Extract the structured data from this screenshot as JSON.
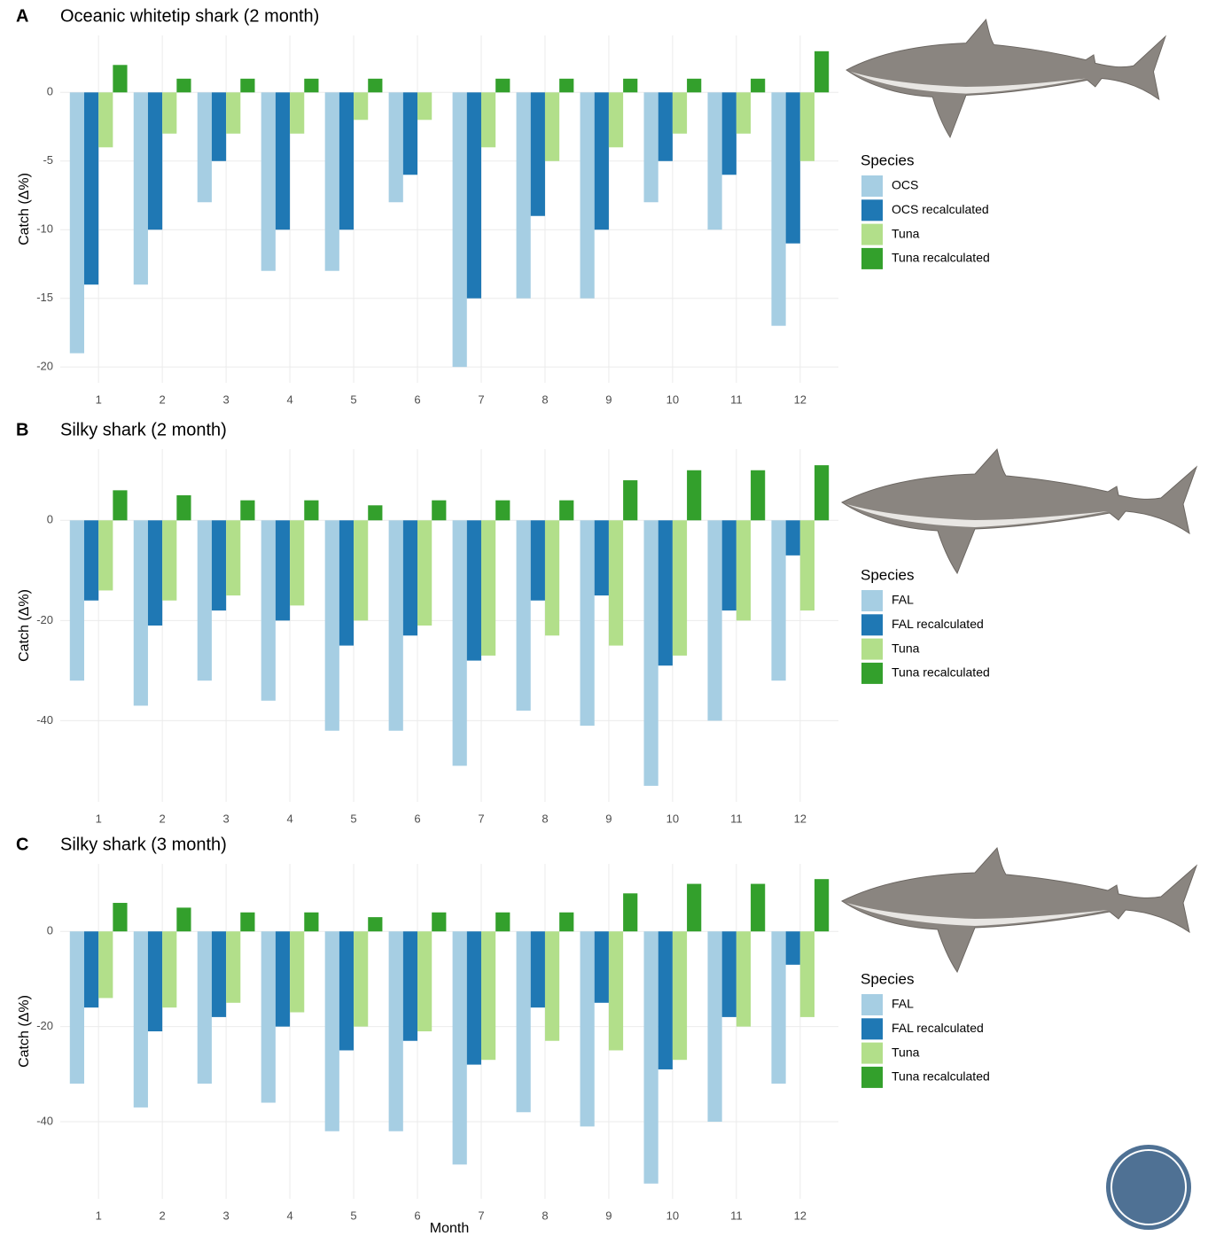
{
  "chart_data": [
    {
      "type": "bar",
      "panel": "A",
      "title": "Oceanic whitetip shark (2 month)",
      "y_label": "Catch (Δ%)",
      "legend_title": "Species",
      "legend": "right",
      "grid": true,
      "categories": [
        "1",
        "2",
        "3",
        "4",
        "5",
        "6",
        "7",
        "8",
        "9",
        "10",
        "11",
        "12"
      ],
      "series": [
        {
          "name": "OCS",
          "color": "#a6cee3",
          "values": [
            -19,
            -14,
            -8,
            -13,
            -13,
            -8,
            -20,
            -15,
            -15,
            -8,
            -10,
            -17
          ]
        },
        {
          "name": "OCS recalculated",
          "color": "#1f78b4",
          "values": [
            -14,
            -10,
            -5,
            -10,
            -10,
            -6,
            -15,
            -9,
            -10,
            -5,
            -6,
            -11
          ]
        },
        {
          "name": "Tuna",
          "color": "#b2df8a",
          "values": [
            -4,
            -3,
            -3,
            -3,
            -2,
            -2,
            -4,
            -5,
            -4,
            -3,
            -3,
            -5
          ]
        },
        {
          "name": "Tuna recalculated",
          "color": "#33a02c",
          "values": [
            2,
            1,
            1,
            1,
            1,
            0,
            1,
            1,
            1,
            1,
            1,
            3
          ]
        }
      ],
      "ylim": [
        -21.15,
        4.15
      ],
      "yticks": [
        -20,
        -15,
        -10,
        -5,
        0
      ]
    },
    {
      "type": "bar",
      "panel": "B",
      "title": "Silky shark (2 month)",
      "y_label": "Catch (Δ%)",
      "legend_title": "Species",
      "legend": "right",
      "grid": true,
      "categories": [
        "1",
        "2",
        "3",
        "4",
        "5",
        "6",
        "7",
        "8",
        "9",
        "10",
        "11",
        "12"
      ],
      "series": [
        {
          "name": "FAL",
          "color": "#a6cee3",
          "values": [
            -32,
            -37,
            -32,
            -36,
            -42,
            -42,
            -49,
            -38,
            -41,
            -53,
            -40,
            -32
          ]
        },
        {
          "name": "FAL recalculated",
          "color": "#1f78b4",
          "values": [
            -16,
            -21,
            -18,
            -20,
            -25,
            -23,
            -28,
            -16,
            -15,
            -29,
            -18,
            -7
          ]
        },
        {
          "name": "Tuna",
          "color": "#b2df8a",
          "values": [
            -14,
            -16,
            -15,
            -17,
            -20,
            -21,
            -27,
            -23,
            -25,
            -27,
            -20,
            -18
          ]
        },
        {
          "name": "Tuna recalculated",
          "color": "#33a02c",
          "values": [
            6,
            5,
            4,
            4,
            3,
            4,
            4,
            4,
            8,
            10,
            10,
            11
          ]
        }
      ],
      "ylim": [
        -56.2,
        14.2
      ],
      "yticks": [
        -40,
        -20,
        0
      ]
    },
    {
      "type": "bar",
      "panel": "C",
      "title": "Silky shark (3 month)",
      "y_label": "Catch (Δ%)",
      "x_label": "Month",
      "legend_title": "Species",
      "legend": "right",
      "grid": true,
      "categories": [
        "1",
        "2",
        "3",
        "4",
        "5",
        "6",
        "7",
        "8",
        "9",
        "10",
        "11",
        "12"
      ],
      "series": [
        {
          "name": "FAL",
          "color": "#a6cee3",
          "values": [
            -32,
            -37,
            -32,
            -36,
            -42,
            -42,
            -49,
            -38,
            -41,
            -53,
            -40,
            -32
          ]
        },
        {
          "name": "FAL recalculated",
          "color": "#1f78b4",
          "values": [
            -16,
            -21,
            -18,
            -20,
            -25,
            -23,
            -28,
            -16,
            -15,
            -29,
            -18,
            -7
          ]
        },
        {
          "name": "Tuna",
          "color": "#b2df8a",
          "values": [
            -14,
            -16,
            -15,
            -17,
            -20,
            -21,
            -27,
            -23,
            -25,
            -27,
            -20,
            -18
          ]
        },
        {
          "name": "Tuna recalculated",
          "color": "#33a02c",
          "values": [
            6,
            5,
            4,
            4,
            3,
            4,
            4,
            4,
            8,
            10,
            10,
            11
          ]
        }
      ],
      "ylim": [
        -56.2,
        14.2
      ],
      "yticks": [
        -40,
        -20,
        0
      ]
    }
  ]
}
